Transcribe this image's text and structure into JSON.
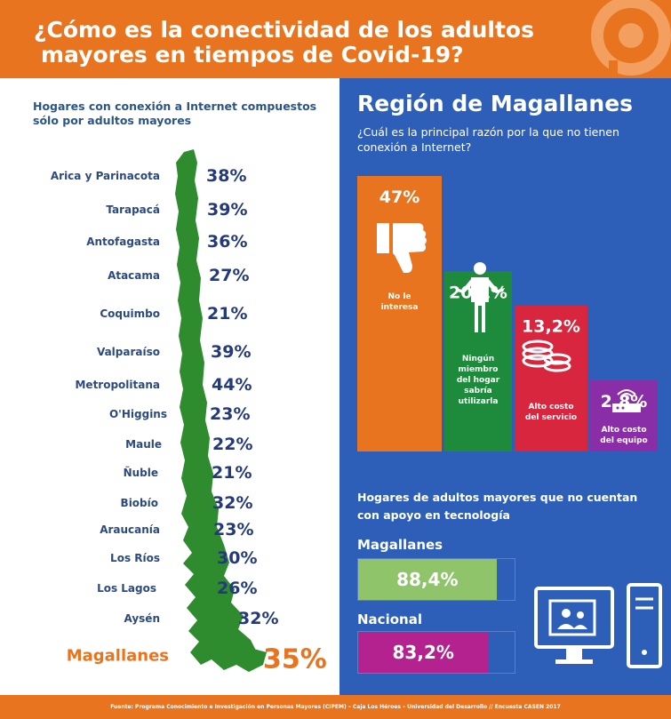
{
  "header": {
    "title_line1": "¿Cómo es la conectividad de los adultos",
    "title_line2": "mayores en tiempos de Covid-19?"
  },
  "colors": {
    "orange": "#e8741f",
    "blue": "#2e5fb8",
    "green": "#1e8a3c",
    "red": "#d7263d",
    "purple": "#8a2ea8",
    "light_green": "#8fc46b",
    "magenta": "#b3228f",
    "map_green": "#2e8b2e"
  },
  "left": {
    "subtitle": "Hogares con conexión a Internet compuestos sólo por adultos mayores"
  },
  "right": {
    "title": "Región de Magallanes",
    "question": "¿Cuál es la principal razón por la que no tienen conexión a Internet?",
    "support_heading": "Hogares de adultos mayores que no cuentan con apoyo en tecnología",
    "icons": [
      "thumbs-down-icon",
      "person-shrug-icon",
      "coins-icon",
      "wifi-router-icon",
      "computer-icon"
    ]
  },
  "footer": {
    "text": "Fuente: Programa Conocimiento e Investigación en Personas Mayores (CIPEM) – Caja Los Héroes – Universidad del Desarrollo // Encuesta CASEN 2017"
  },
  "chart_data": [
    {
      "type": "bar",
      "title": "Hogares con conexión a Internet compuestos sólo por adultos mayores",
      "categories": [
        "Arica y Parinacota",
        "Tarapacá",
        "Antofagasta",
        "Atacama",
        "Coquimbo",
        "Valparaíso",
        "Metropolitana",
        "O'Higgins",
        "Maule",
        "Ñuble",
        "Biobío",
        "Araucanía",
        "Los Ríos",
        "Los Lagos",
        "Aysén",
        "Magallanes"
      ],
      "values": [
        38,
        39,
        36,
        27,
        21,
        39,
        44,
        23,
        22,
        21,
        32,
        23,
        30,
        26,
        32,
        35
      ],
      "labels": [
        "38%",
        "39%",
        "36%",
        "27%",
        "21%",
        "39%",
        "44%",
        "23%",
        "22%",
        "21%",
        "32%",
        "23%",
        "30%",
        "26%",
        "32%",
        "35%"
      ],
      "highlight": "Magallanes"
    },
    {
      "type": "bar",
      "title": "¿Cuál es la principal razón por la que no tienen conexión a Internet?",
      "categories": [
        "No le interesa",
        "Ningún miembro del hogar sabría utilizarla",
        "Alto costo del servicio",
        "Alto costo del equipo"
      ],
      "category_lines": [
        [
          "No le",
          "interesa"
        ],
        [
          "Ningún",
          "miembro",
          "del hogar",
          "sabría",
          "utilizarla"
        ],
        [
          "Alto costo",
          "del servicio"
        ],
        [
          "Alto costo",
          "del equipo"
        ]
      ],
      "values": [
        47,
        20.1,
        13.2,
        2.8
      ],
      "labels": [
        "47%",
        "20,1%",
        "13,2%",
        "2,8%"
      ],
      "colors": [
        "#e8741f",
        "#1e8a3c",
        "#d7263d",
        "#8a2ea8"
      ]
    },
    {
      "type": "bar",
      "title": "Hogares de adultos mayores que no cuentan con apoyo en tecnología",
      "categories": [
        "Magallanes",
        "Nacional"
      ],
      "values": [
        88.4,
        83.2
      ],
      "labels": [
        "88,4%",
        "83,2%"
      ],
      "colors": [
        "#8fc46b",
        "#b3228f"
      ]
    }
  ]
}
